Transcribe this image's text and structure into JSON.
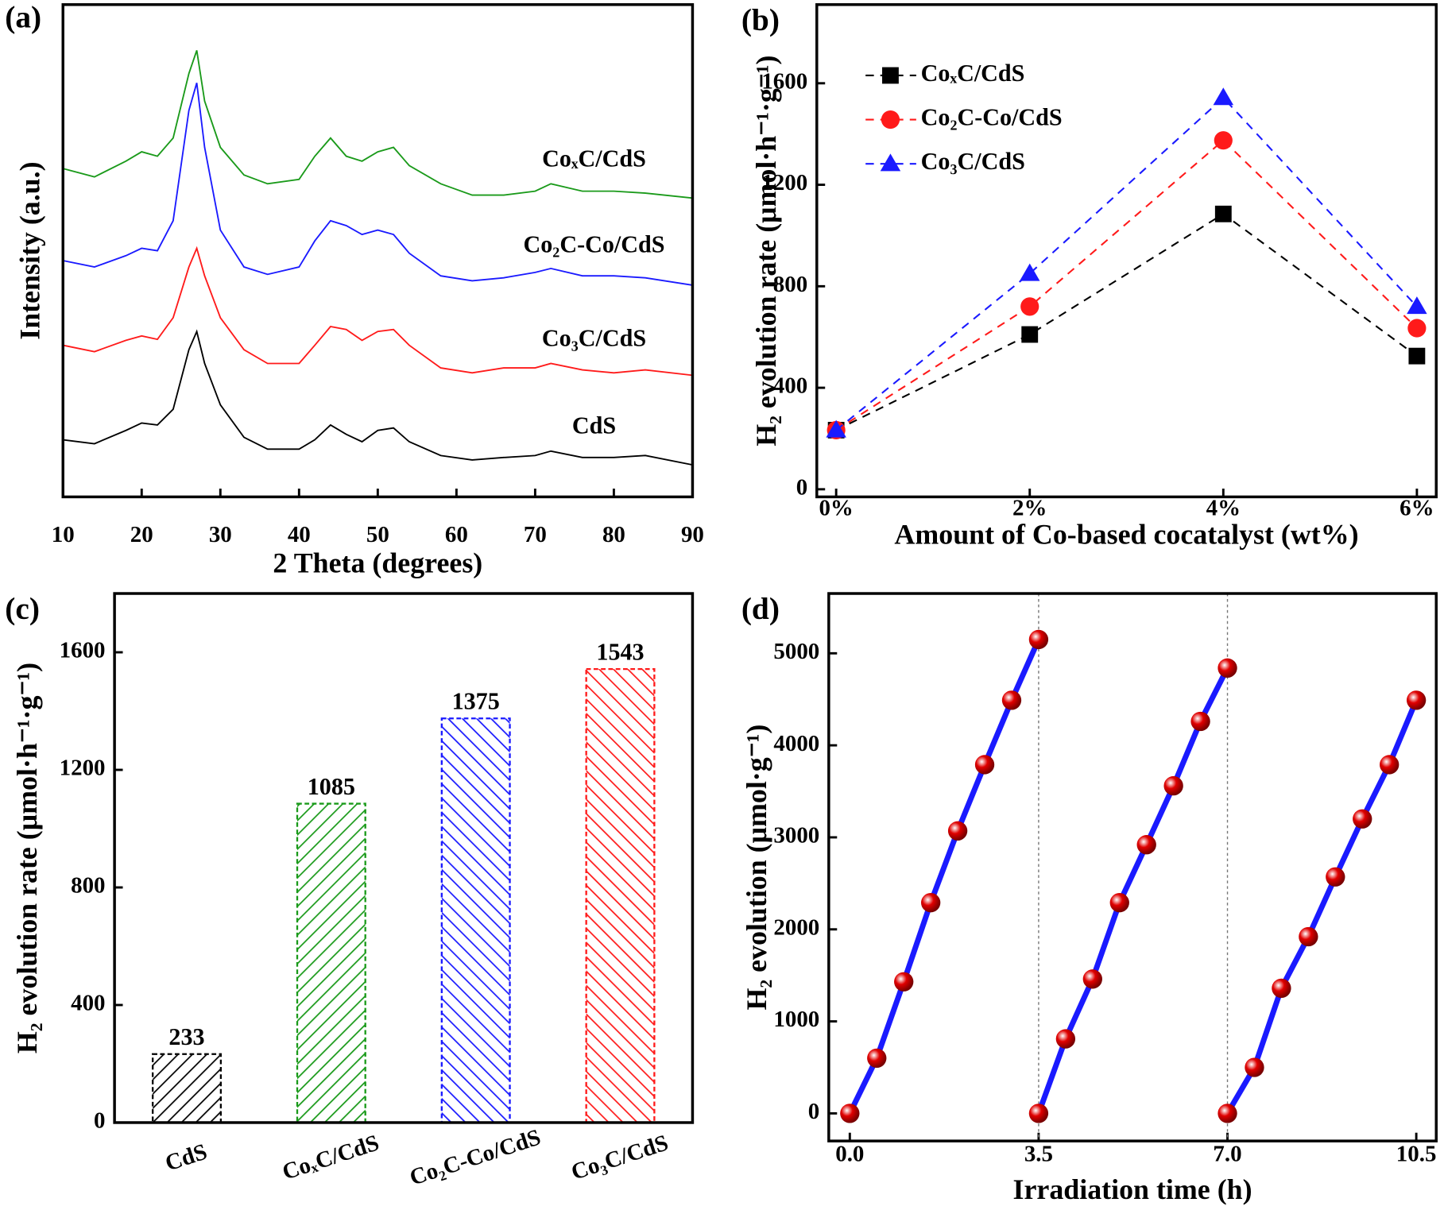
{
  "chart_data": [
    {
      "type": "line",
      "panel_label": "(a)",
      "xlabel": "2 Theta (degrees)",
      "ylabel": "Intensity (a.u.)",
      "x": [
        10,
        14,
        18,
        20,
        22,
        24,
        26,
        27,
        28,
        30,
        33,
        36,
        40,
        42,
        44,
        46,
        48,
        50,
        52,
        54,
        58,
        62,
        66,
        70,
        72,
        76,
        80,
        84,
        90
      ],
      "series": [
        {
          "name": "CoₓC/CdS",
          "color": "#1a9a1a",
          "values": [
            66.7,
            65.0,
            68.2,
            70.1,
            69.2,
            72.9,
            86.0,
            90.7,
            80.4,
            71.0,
            65.4,
            63.6,
            64.5,
            69.2,
            72.9,
            69.2,
            68.2,
            70.1,
            71.0,
            67.3,
            63.6,
            61.3,
            61.3,
            62.1,
            63.6,
            62.1,
            62.1,
            61.7,
            60.7
          ]
        },
        {
          "name": "Co₂C-Co/CdS",
          "color": "#1a1aff",
          "values": [
            48.0,
            46.7,
            49.0,
            50.5,
            50.0,
            56.1,
            78.5,
            84.1,
            71.0,
            54.2,
            46.7,
            45.2,
            46.7,
            52.0,
            56.1,
            55.1,
            53.3,
            54.2,
            53.3,
            49.5,
            44.9,
            43.9,
            44.5,
            45.6,
            46.4,
            44.9,
            44.9,
            44.5,
            43.0
          ]
        },
        {
          "name": "Co₃C/CdS",
          "color": "#ff1a1a",
          "values": [
            30.8,
            29.5,
            31.8,
            32.7,
            32.0,
            36.4,
            46.7,
            50.5,
            44.9,
            36.4,
            29.9,
            27.1,
            27.1,
            30.8,
            34.6,
            34.0,
            31.8,
            33.6,
            34.0,
            30.8,
            26.2,
            25.2,
            26.2,
            26.2,
            27.1,
            25.8,
            25.2,
            25.8,
            24.7
          ]
        },
        {
          "name": "CdS",
          "color": "#000000",
          "values": [
            11.6,
            10.8,
            13.5,
            15.0,
            14.6,
            17.8,
            29.9,
            33.6,
            27.1,
            18.7,
            12.1,
            9.7,
            9.7,
            11.6,
            14.6,
            12.7,
            11.2,
            13.5,
            14.0,
            11.2,
            8.4,
            7.5,
            8.0,
            8.4,
            9.3,
            8.0,
            8.0,
            8.4,
            6.5
          ]
        }
      ],
      "xlim": [
        10,
        90
      ],
      "xticks": [
        10,
        20,
        30,
        40,
        50,
        60,
        70,
        80,
        90
      ],
      "ylim": [
        0,
        100
      ]
    },
    {
      "type": "line",
      "panel_label": "(b)",
      "xlabel": "Amount of Co-based cocatalyst (wt%)",
      "ylabel": "H₂ evolution rate (μmol·h⁻¹·g⁻¹)",
      "x": [
        0,
        2,
        4,
        6
      ],
      "line_style": "dashed",
      "legend": "upper left",
      "series": [
        {
          "name": "CoₓC/CdS",
          "color": "#000000",
          "marker": "square",
          "values": [
            233,
            610,
            1085,
            525
          ]
        },
        {
          "name": "Co₂C-Co/CdS",
          "color": "#ff1a1a",
          "marker": "circle",
          "values": [
            233,
            720,
            1375,
            635
          ]
        },
        {
          "name": "Co₃C/CdS",
          "color": "#1a1aff",
          "marker": "triangle",
          "values": [
            233,
            850,
            1543,
            720
          ]
        }
      ],
      "xlim": [
        -0.2,
        6.2
      ],
      "xticks": [
        {
          "value": 0,
          "label": "0%"
        },
        {
          "value": 2,
          "label": "2%"
        },
        {
          "value": 4,
          "label": "4%"
        },
        {
          "value": 6,
          "label": "6%"
        }
      ],
      "ylim": [
        -30,
        1910
      ],
      "yticks": [
        0,
        400,
        800,
        1200,
        1600
      ]
    },
    {
      "type": "bar",
      "panel_label": "(c)",
      "ylabel": "H₂ evolution rate (μmol·h⁻¹·g⁻¹)",
      "categories": [
        "CdS",
        "CoₓC/CdS",
        "Co₂C-Co/CdS",
        "Co₃C/CdS"
      ],
      "values": [
        233,
        1085,
        1375,
        1543
      ],
      "colors": [
        "#000000",
        "#1a9a1a",
        "#1a1aff",
        "#ff1a1a"
      ],
      "hatches": [
        "/",
        "/",
        "\\",
        "\\"
      ],
      "ylim": [
        0,
        1800
      ],
      "yticks": [
        0,
        400,
        800,
        1200,
        1600
      ]
    },
    {
      "type": "line",
      "panel_label": "(d)",
      "xlabel": "Irradiation time (h)",
      "ylabel": "H₂ evolution (μmol·g⁻¹)",
      "series": [
        {
          "color": "#1a1aff",
          "marker": "sphere",
          "marker_color": "#e00000",
          "x": [
            0,
            0.5,
            1,
            1.5,
            2,
            2.5,
            3,
            3.5
          ],
          "values": [
            0,
            600,
            1430,
            2290,
            3070,
            3790,
            4490,
            5150
          ]
        },
        {
          "color": "#1a1aff",
          "marker": "sphere",
          "marker_color": "#e00000",
          "x": [
            3.5,
            4,
            4.5,
            5,
            5.5,
            6,
            6.5,
            7
          ],
          "values": [
            0,
            810,
            1460,
            2290,
            2920,
            3560,
            4260,
            4840
          ]
        },
        {
          "color": "#1a1aff",
          "marker": "sphere",
          "marker_color": "#e00000",
          "x": [
            7,
            7.5,
            8,
            8.5,
            9,
            9.5,
            10,
            10.5
          ],
          "values": [
            0,
            500,
            1360,
            1920,
            2570,
            3200,
            3790,
            4490
          ]
        }
      ],
      "vlines": [
        3.5,
        7.0
      ],
      "xlim": [
        -0.39,
        10.87
      ],
      "xticks": [
        {
          "value": 0,
          "label": "0.0"
        },
        3.5,
        {
          "value": 7,
          "label": "7.0"
        },
        10.5
      ],
      "ylim": [
        -300,
        5650
      ],
      "yticks": [
        0,
        1000,
        2000,
        3000,
        4000,
        5000
      ]
    }
  ]
}
